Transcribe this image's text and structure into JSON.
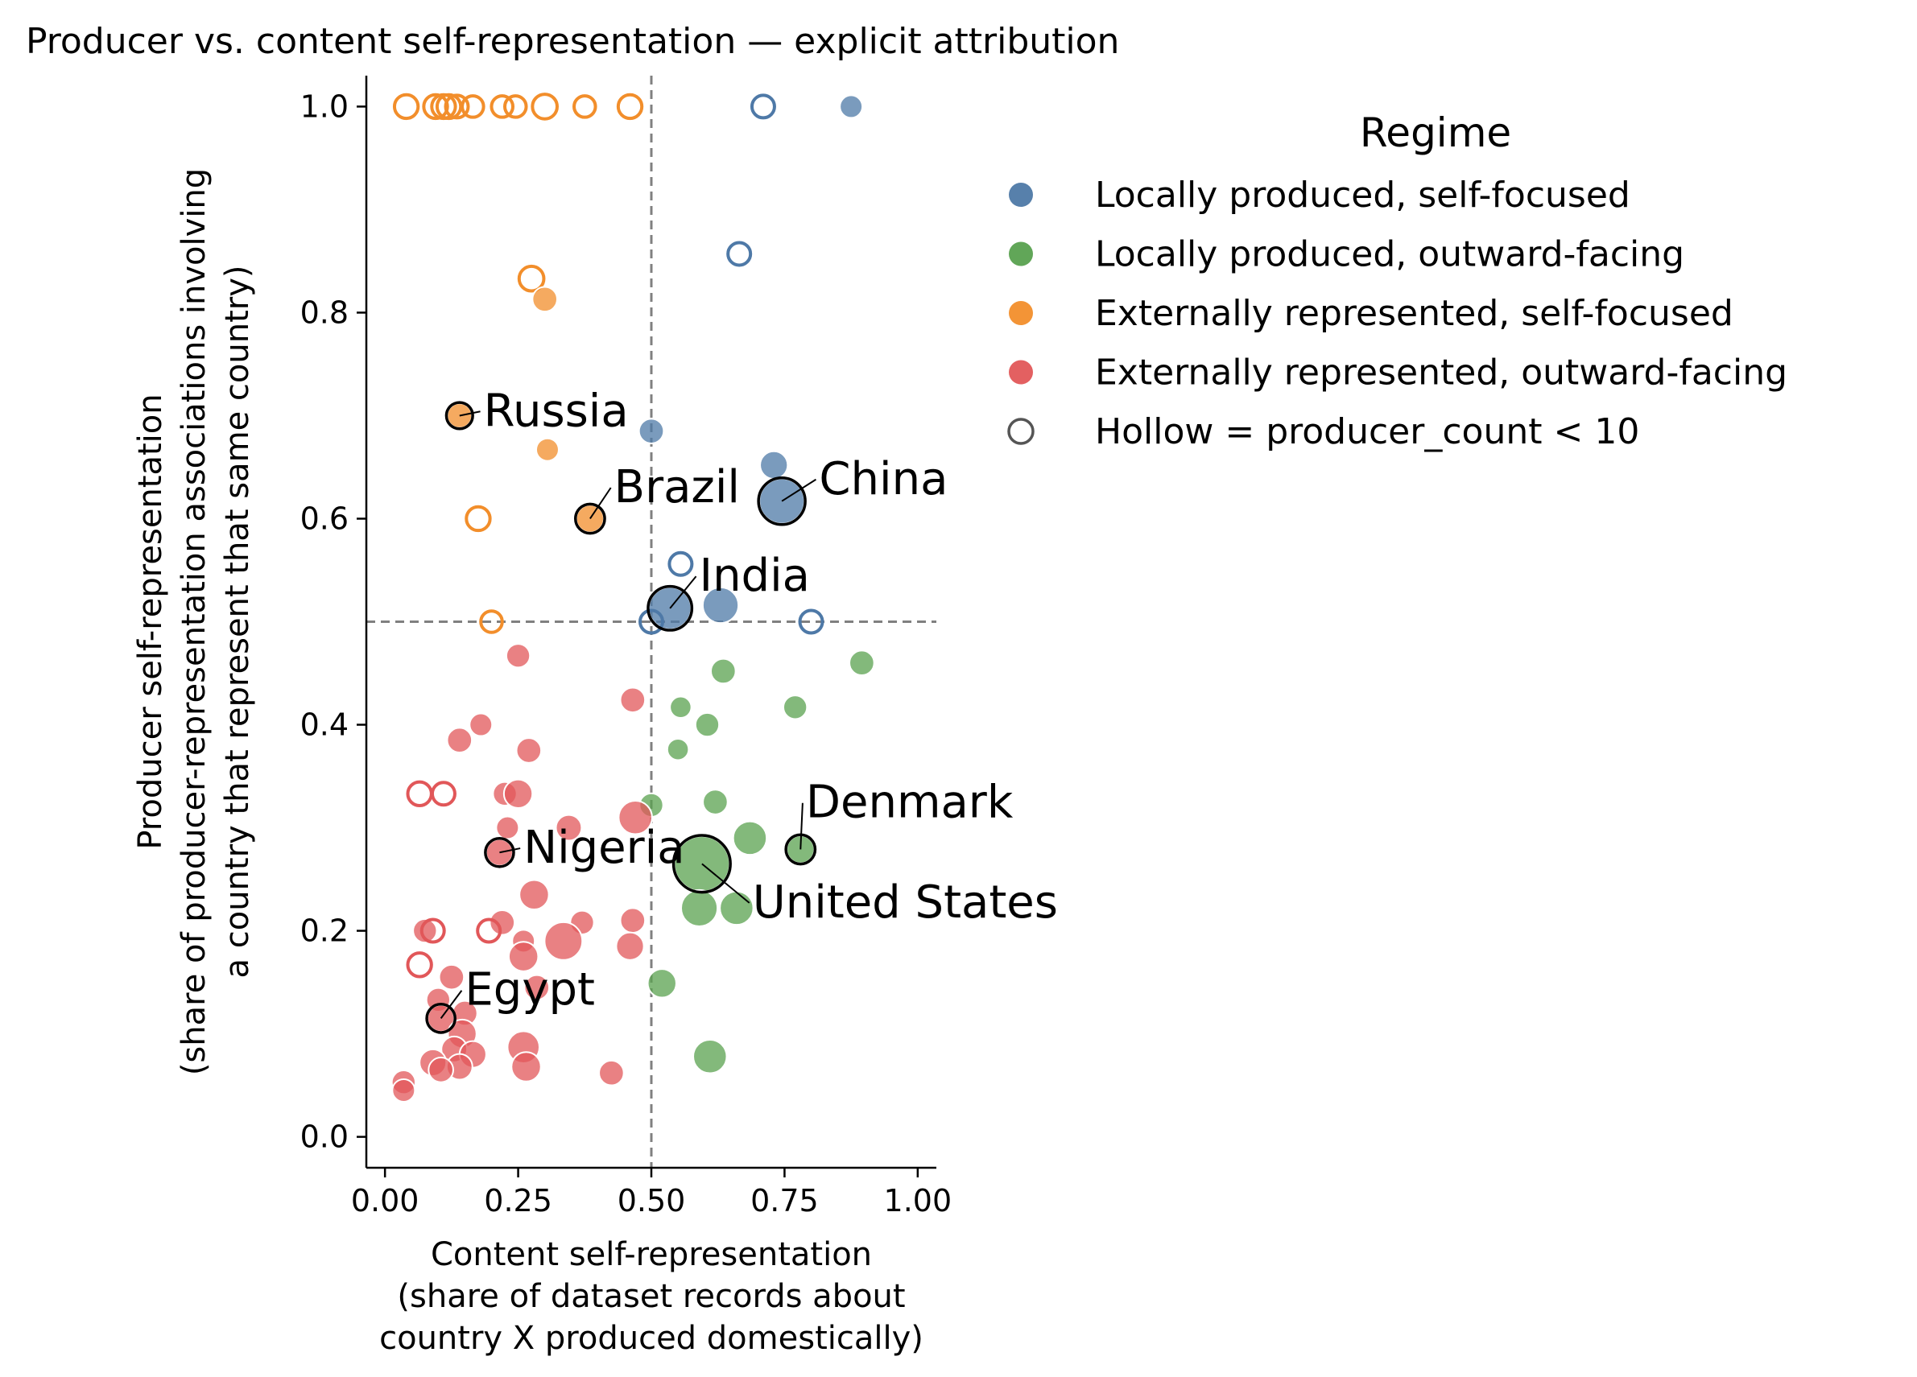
{
  "chart_data": {
    "type": "scatter",
    "title": "Producer vs. content self-representation — explicit attribution",
    "xlabel": [
      "Content self-representation",
      "(share of dataset records about",
      "country X produced domestically)"
    ],
    "ylabel": [
      "Producer self-representation",
      "(share of producer-representation associations involving",
      "a country that represent that same country)"
    ],
    "xlim": [
      -0.035,
      1.035
    ],
    "ylim": [
      -0.03,
      1.03
    ],
    "xticks": [
      0.0,
      0.25,
      0.5,
      0.75,
      1.0
    ],
    "xtick_labels": [
      "0.00",
      "0.25",
      "0.50",
      "0.75",
      "1.00"
    ],
    "yticks": [
      0.0,
      0.2,
      0.4,
      0.6,
      0.8,
      1.0
    ],
    "ytick_labels": [
      "0.0",
      "0.2",
      "0.4",
      "0.6",
      "0.8",
      "1.0"
    ],
    "reference_lines": {
      "x": 0.5,
      "y": 0.5,
      "style": "dashed",
      "color": "#808080"
    },
    "grid": false,
    "legend": {
      "title": "Regime",
      "placement": "outside-right-top",
      "entries": [
        {
          "label": "Locally produced, self-focused",
          "color": "#4e79a7",
          "hollow": false
        },
        {
          "label": "Locally produced, outward-facing",
          "color": "#59a14f",
          "hollow": false
        },
        {
          "label": "Externally represented, self-focused",
          "color": "#f28e2b",
          "hollow": false
        },
        {
          "label": "Externally represented, outward-facing",
          "color": "#e15759",
          "hollow": false
        },
        {
          "label": "Hollow = producer_count < 10",
          "color": "#555555",
          "hollow": true
        }
      ]
    },
    "series": [
      {
        "name": "Locally produced, self-focused",
        "color": "#4e79a7",
        "points": [
          {
            "x": 0.71,
            "y": 1.0,
            "s": 1,
            "h": true
          },
          {
            "x": 0.875,
            "y": 1.0,
            "s": 1,
            "h": false
          },
          {
            "x": 0.665,
            "y": 0.857,
            "s": 1,
            "h": true
          },
          {
            "x": 0.5,
            "y": 0.685,
            "s": 1.2,
            "h": false
          },
          {
            "x": 0.73,
            "y": 0.652,
            "s": 1.5,
            "h": false
          },
          {
            "x": 0.745,
            "y": 0.617,
            "s": 4,
            "h": false,
            "label": "China"
          },
          {
            "x": 0.555,
            "y": 0.556,
            "s": 1,
            "h": true
          },
          {
            "x": 0.535,
            "y": 0.513,
            "s": 3.5,
            "h": false,
            "label": "India"
          },
          {
            "x": 0.63,
            "y": 0.516,
            "s": 2.5,
            "h": false
          },
          {
            "x": 0.5,
            "y": 0.5,
            "s": 1,
            "h": true
          },
          {
            "x": 0.8,
            "y": 0.5,
            "s": 1,
            "h": true
          }
        ]
      },
      {
        "name": "Locally produced, outward-facing",
        "color": "#59a14f",
        "points": [
          {
            "x": 0.895,
            "y": 0.46,
            "s": 1.2,
            "h": false
          },
          {
            "x": 0.635,
            "y": 0.452,
            "s": 1.2,
            "h": false
          },
          {
            "x": 0.77,
            "y": 0.417,
            "s": 1.1,
            "h": false
          },
          {
            "x": 0.555,
            "y": 0.417,
            "s": 0.9,
            "h": false
          },
          {
            "x": 0.605,
            "y": 0.4,
            "s": 1.1,
            "h": false
          },
          {
            "x": 0.55,
            "y": 0.376,
            "s": 0.9,
            "h": false
          },
          {
            "x": 0.62,
            "y": 0.325,
            "s": 1.2,
            "h": false
          },
          {
            "x": 0.5,
            "y": 0.322,
            "s": 1.1,
            "h": false
          },
          {
            "x": 0.685,
            "y": 0.29,
            "s": 2.2,
            "h": false
          },
          {
            "x": 0.78,
            "y": 0.279,
            "s": 1.5,
            "h": false,
            "label": "Denmark"
          },
          {
            "x": 0.595,
            "y": 0.265,
            "s": 6,
            "h": false,
            "label": "United States"
          },
          {
            "x": 0.59,
            "y": 0.222,
            "s": 2.6,
            "h": false
          },
          {
            "x": 0.66,
            "y": 0.222,
            "s": 2.2,
            "h": false
          },
          {
            "x": 0.52,
            "y": 0.149,
            "s": 1.6,
            "h": false
          },
          {
            "x": 0.61,
            "y": 0.078,
            "s": 2.2,
            "h": false
          }
        ]
      },
      {
        "name": "Externally represented, self-focused",
        "color": "#f28e2b",
        "points": [
          {
            "x": 0.04,
            "y": 1.0,
            "s": 1.1,
            "h": true
          },
          {
            "x": 0.095,
            "y": 1.0,
            "s": 1.1,
            "h": true
          },
          {
            "x": 0.11,
            "y": 1.0,
            "s": 1.1,
            "h": true
          },
          {
            "x": 0.12,
            "y": 1.0,
            "s": 1.1,
            "h": true
          },
          {
            "x": 0.135,
            "y": 1.0,
            "s": 1.0,
            "h": true
          },
          {
            "x": 0.165,
            "y": 1.0,
            "s": 0.9,
            "h": true
          },
          {
            "x": 0.22,
            "y": 1.0,
            "s": 0.9,
            "h": true
          },
          {
            "x": 0.245,
            "y": 1.0,
            "s": 0.9,
            "h": true
          },
          {
            "x": 0.3,
            "y": 1.0,
            "s": 1.2,
            "h": true
          },
          {
            "x": 0.375,
            "y": 1.0,
            "s": 0.9,
            "h": true
          },
          {
            "x": 0.46,
            "y": 1.0,
            "s": 1.1,
            "h": true
          },
          {
            "x": 0.275,
            "y": 0.833,
            "s": 1.2,
            "h": true
          },
          {
            "x": 0.3,
            "y": 0.813,
            "s": 1.2,
            "h": false
          },
          {
            "x": 0.14,
            "y": 0.7,
            "s": 1.2,
            "h": false,
            "label": "Russia"
          },
          {
            "x": 0.305,
            "y": 0.667,
            "s": 1.0,
            "h": false
          },
          {
            "x": 0.385,
            "y": 0.6,
            "s": 1.5,
            "h": false,
            "label": "Brazil"
          },
          {
            "x": 0.175,
            "y": 0.6,
            "s": 1.1,
            "h": true
          },
          {
            "x": 0.2,
            "y": 0.5,
            "s": 0.9,
            "h": true
          }
        ]
      },
      {
        "name": "Externally represented, outward-facing",
        "color": "#e15759",
        "points": [
          {
            "x": 0.25,
            "y": 0.467,
            "s": 1.1,
            "h": false
          },
          {
            "x": 0.465,
            "y": 0.424,
            "s": 1.2,
            "h": false
          },
          {
            "x": 0.18,
            "y": 0.4,
            "s": 1.0,
            "h": false
          },
          {
            "x": 0.14,
            "y": 0.385,
            "s": 1.2,
            "h": false
          },
          {
            "x": 0.27,
            "y": 0.375,
            "s": 1.2,
            "h": false
          },
          {
            "x": 0.065,
            "y": 0.333,
            "s": 1.1,
            "h": true
          },
          {
            "x": 0.11,
            "y": 0.333,
            "s": 1.0,
            "h": true
          },
          {
            "x": 0.225,
            "y": 0.333,
            "s": 1.1,
            "h": false
          },
          {
            "x": 0.25,
            "y": 0.333,
            "s": 1.6,
            "h": false
          },
          {
            "x": 0.47,
            "y": 0.31,
            "s": 2.2,
            "h": false
          },
          {
            "x": 0.23,
            "y": 0.3,
            "s": 1.0,
            "h": false
          },
          {
            "x": 0.345,
            "y": 0.3,
            "s": 1.3,
            "h": false
          },
          {
            "x": 0.215,
            "y": 0.276,
            "s": 1.4,
            "h": false,
            "label": "Nigeria"
          },
          {
            "x": 0.28,
            "y": 0.235,
            "s": 1.7,
            "h": false
          },
          {
            "x": 0.465,
            "y": 0.21,
            "s": 1.2,
            "h": false
          },
          {
            "x": 0.37,
            "y": 0.208,
            "s": 1.1,
            "h": false
          },
          {
            "x": 0.22,
            "y": 0.208,
            "s": 1.2,
            "h": false
          },
          {
            "x": 0.335,
            "y": 0.19,
            "s": 2.8,
            "h": false
          },
          {
            "x": 0.075,
            "y": 0.2,
            "s": 1.1,
            "h": false
          },
          {
            "x": 0.09,
            "y": 0.2,
            "s": 1.0,
            "h": true
          },
          {
            "x": 0.195,
            "y": 0.2,
            "s": 1.0,
            "h": true
          },
          {
            "x": 0.26,
            "y": 0.19,
            "s": 1.0,
            "h": false
          },
          {
            "x": 0.26,
            "y": 0.175,
            "s": 1.7,
            "h": false
          },
          {
            "x": 0.46,
            "y": 0.185,
            "s": 1.5,
            "h": false
          },
          {
            "x": 0.065,
            "y": 0.167,
            "s": 1.1,
            "h": true
          },
          {
            "x": 0.125,
            "y": 0.155,
            "s": 1.2,
            "h": false
          },
          {
            "x": 0.285,
            "y": 0.145,
            "s": 1.2,
            "h": false
          },
          {
            "x": 0.1,
            "y": 0.133,
            "s": 1.1,
            "h": false
          },
          {
            "x": 0.15,
            "y": 0.12,
            "s": 1.2,
            "h": false
          },
          {
            "x": 0.105,
            "y": 0.115,
            "s": 1.4,
            "h": false,
            "label": "Egypt"
          },
          {
            "x": 0.145,
            "y": 0.1,
            "s": 1.6,
            "h": false
          },
          {
            "x": 0.13,
            "y": 0.085,
            "s": 1.3,
            "h": false
          },
          {
            "x": 0.165,
            "y": 0.08,
            "s": 1.4,
            "h": false
          },
          {
            "x": 0.26,
            "y": 0.087,
            "s": 2.0,
            "h": false
          },
          {
            "x": 0.09,
            "y": 0.072,
            "s": 1.4,
            "h": false
          },
          {
            "x": 0.14,
            "y": 0.068,
            "s": 1.3,
            "h": false
          },
          {
            "x": 0.265,
            "y": 0.068,
            "s": 1.7,
            "h": false
          },
          {
            "x": 0.105,
            "y": 0.065,
            "s": 1.2,
            "h": false
          },
          {
            "x": 0.425,
            "y": 0.062,
            "s": 1.2,
            "h": false
          },
          {
            "x": 0.035,
            "y": 0.053,
            "s": 1.1,
            "h": false
          },
          {
            "x": 0.035,
            "y": 0.045,
            "s": 1.0,
            "h": false
          }
        ]
      }
    ],
    "annotations": [
      {
        "text": "Russia",
        "x": 0.14,
        "y": 0.7,
        "tx": 0.185,
        "ty": 0.69
      },
      {
        "text": "Brazil",
        "x": 0.385,
        "y": 0.6,
        "tx": 0.43,
        "ty": 0.616
      },
      {
        "text": "China",
        "x": 0.745,
        "y": 0.617,
        "tx": 0.815,
        "ty": 0.624
      },
      {
        "text": "India",
        "x": 0.535,
        "y": 0.513,
        "tx": 0.59,
        "ty": 0.53
      },
      {
        "text": "Denmark",
        "x": 0.78,
        "y": 0.279,
        "tx": 0.79,
        "ty": 0.31
      },
      {
        "text": "United States",
        "x": 0.595,
        "y": 0.265,
        "tx": 0.69,
        "ty": 0.213
      },
      {
        "text": "Nigeria",
        "x": 0.215,
        "y": 0.276,
        "tx": 0.26,
        "ty": 0.266
      },
      {
        "text": "Egypt",
        "x": 0.105,
        "y": 0.115,
        "tx": 0.15,
        "ty": 0.128
      }
    ]
  }
}
